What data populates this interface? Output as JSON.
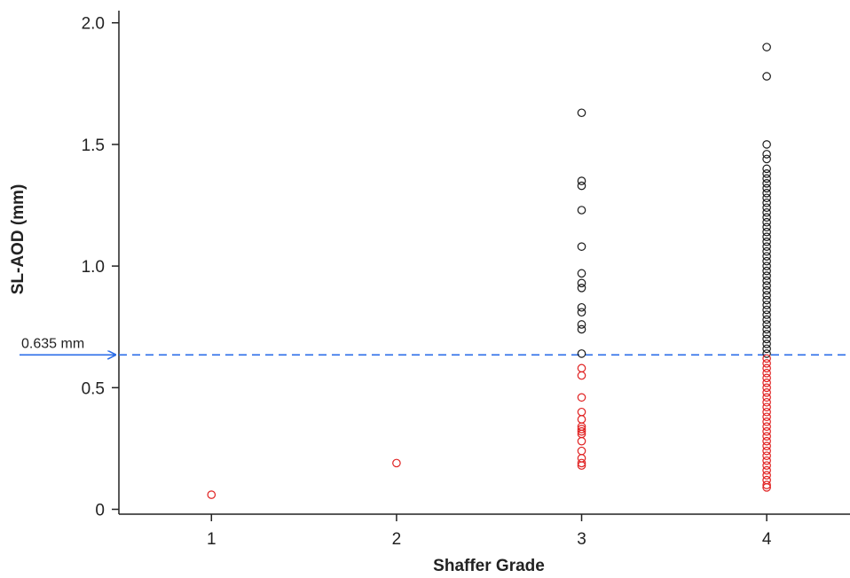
{
  "chart_data": {
    "type": "scatter",
    "title": "",
    "xlabel": "Shaffer Grade",
    "ylabel": "SL-AOD (mm)",
    "xlim": [
      0.5,
      4.45
    ],
    "ylim": [
      -0.02,
      2.05
    ],
    "x_ticks": [
      1,
      2,
      3,
      4
    ],
    "y_ticks": [
      0,
      0.5,
      1.0,
      1.5,
      2.0
    ],
    "y_tick_labels": [
      "0",
      "0.5",
      "1.0",
      "1.5",
      "2.0"
    ],
    "grid": false,
    "threshold": {
      "value": 0.635,
      "label": "0.635 mm",
      "color": "#2b6de8"
    },
    "colors": {
      "above": "#1a1a1a",
      "below": "#e02020"
    },
    "series": [
      {
        "x": 1,
        "values": [
          0.06
        ]
      },
      {
        "x": 2,
        "values": [
          0.19
        ]
      },
      {
        "x": 3,
        "values": [
          1.63,
          1.35,
          1.33,
          1.23,
          1.08,
          0.97,
          0.93,
          0.91,
          0.83,
          0.81,
          0.76,
          0.74,
          0.64,
          0.58,
          0.55,
          0.46,
          0.4,
          0.37,
          0.34,
          0.33,
          0.32,
          0.31,
          0.28,
          0.24,
          0.21,
          0.19,
          0.18
        ]
      },
      {
        "x": 4,
        "values": [
          1.9,
          1.78,
          1.5,
          1.46,
          1.44,
          1.4,
          1.38,
          1.36,
          1.34,
          1.32,
          1.3,
          1.28,
          1.26,
          1.24,
          1.22,
          1.2,
          1.18,
          1.16,
          1.14,
          1.12,
          1.1,
          1.08,
          1.06,
          1.04,
          1.02,
          1.0,
          0.98,
          0.96,
          0.94,
          0.92,
          0.9,
          0.88,
          0.86,
          0.84,
          0.82,
          0.8,
          0.78,
          0.76,
          0.74,
          0.72,
          0.7,
          0.68,
          0.66,
          0.64,
          0.62,
          0.6,
          0.58,
          0.56,
          0.54,
          0.52,
          0.5,
          0.48,
          0.46,
          0.44,
          0.42,
          0.4,
          0.38,
          0.36,
          0.34,
          0.32,
          0.3,
          0.28,
          0.26,
          0.24,
          0.22,
          0.2,
          0.18,
          0.16,
          0.14,
          0.12,
          0.1,
          0.09
        ]
      }
    ]
  }
}
